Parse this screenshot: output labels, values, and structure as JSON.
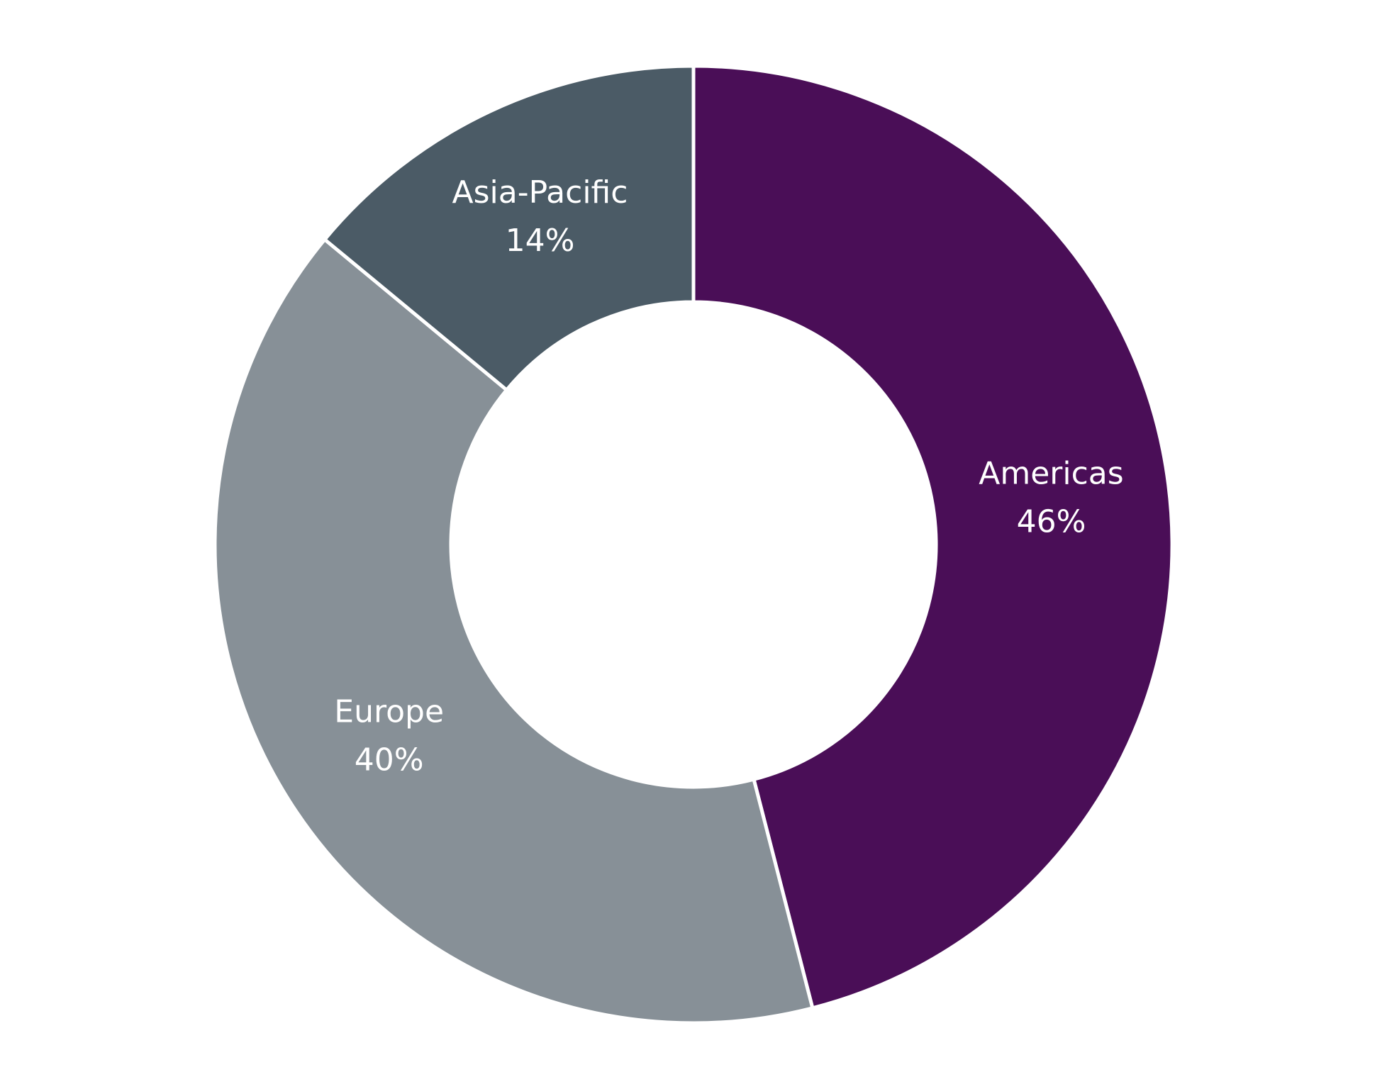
{
  "chart_data": {
    "type": "donut",
    "categories": [
      "Americas",
      "Europe",
      "Asia-Pacific"
    ],
    "values": [
      46,
      40,
      14
    ],
    "value_labels": [
      "46%",
      "40%",
      "14%"
    ],
    "colors": [
      "#4a0e57",
      "#879097",
      "#4b5b66"
    ]
  }
}
